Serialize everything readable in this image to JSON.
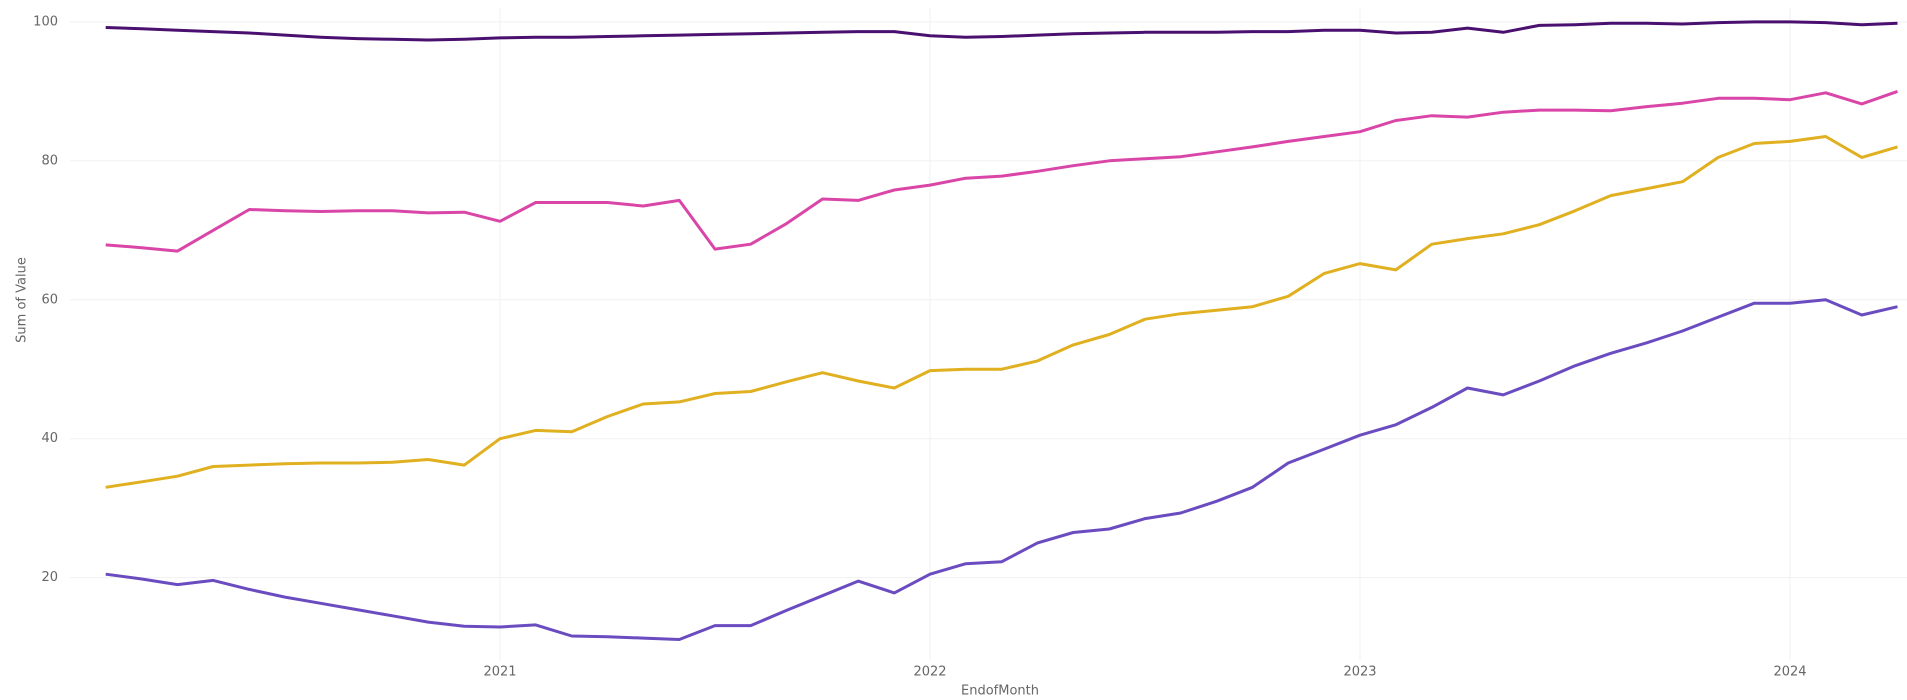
{
  "chart_data": {
    "type": "line",
    "x_label": "EndofMonth",
    "y_label": "Sum of Value",
    "x": [
      2020.083,
      2020.167,
      2020.25,
      2020.333,
      2020.417,
      2020.5,
      2020.583,
      2020.667,
      2020.75,
      2020.833,
      2020.917,
      2021,
      2021.083,
      2021.167,
      2021.25,
      2021.333,
      2021.417,
      2021.5,
      2021.583,
      2021.667,
      2021.75,
      2021.833,
      2021.917,
      2022,
      2022.083,
      2022.167,
      2022.25,
      2022.333,
      2022.417,
      2022.5,
      2022.583,
      2022.667,
      2022.75,
      2022.833,
      2022.917,
      2023,
      2023.083,
      2023.167,
      2023.25,
      2023.333,
      2023.417,
      2023.5,
      2023.583,
      2023.667,
      2023.75,
      2023.833,
      2023.917,
      2024,
      2024.083,
      2024.167,
      2024.25
    ],
    "series": [
      {
        "color": "#4a1070",
        "values": [
          99.2,
          99,
          98.8,
          98.6,
          98.4,
          98.1,
          97.8,
          97.6,
          97.5,
          97.4,
          97.5,
          97.7,
          97.8,
          97.8,
          97.9,
          98,
          98.1,
          98.2,
          98.3,
          98.4,
          98.5,
          98.6,
          98.6,
          98,
          97.8,
          97.9,
          98.1,
          98.3,
          98.4,
          98.5,
          98.5,
          98.5,
          98.6,
          98.6,
          98.8,
          98.8,
          98.4,
          98.5,
          99.1,
          98.5,
          99.5,
          99.6,
          99.8,
          99.8,
          99.7,
          99.9,
          100,
          100,
          99.9,
          99.6,
          99.8
        ]
      },
      {
        "color": "#d946a8",
        "values": [
          67.9,
          67.5,
          67,
          70,
          73,
          72.8,
          72.7,
          72.8,
          72.8,
          72.5,
          72.6,
          71.3,
          74,
          74,
          74,
          73.5,
          74.3,
          67.3,
          68,
          71,
          74.5,
          74.3,
          75.8,
          76.5,
          77.5,
          77.8,
          78.5,
          79.3,
          80,
          80.3,
          80.6,
          81.3,
          82,
          82.8,
          83.5,
          84.2,
          85.8,
          86.5,
          86.3,
          87,
          87.3,
          87.3,
          87.2,
          87.8,
          88.3,
          89,
          89,
          88.8,
          89.8,
          88.2,
          90
        ]
      },
      {
        "color": "#e0b020",
        "values": [
          33,
          33.8,
          34.6,
          36,
          36.2,
          36.4,
          36.5,
          36.5,
          36.6,
          37,
          36.2,
          40,
          41.2,
          41,
          43.2,
          45,
          45.3,
          46.5,
          46.8,
          48.2,
          49.5,
          48.3,
          47.3,
          49.8,
          50,
          50,
          51.2,
          53.5,
          55,
          57.2,
          58,
          58.5,
          59,
          60.5,
          63.8,
          65.2,
          64.3,
          68,
          68.8,
          69.5,
          70.8,
          72.8,
          75,
          76,
          77,
          80.5,
          82.5,
          82.8,
          83.5,
          80.5,
          82
        ]
      },
      {
        "color": "#6a4cc0",
        "values": [
          20.5,
          19.8,
          19,
          19.6,
          18.3,
          17.2,
          16.3,
          15.4,
          14.5,
          13.6,
          13,
          12.9,
          13.2,
          11.6,
          11.5,
          11.3,
          11.1,
          13.1,
          13.1,
          15.3,
          17.4,
          19.5,
          17.8,
          20.5,
          22,
          22.3,
          25,
          26.5,
          27,
          28.5,
          29.3,
          31,
          33,
          36.5,
          38.5,
          40.5,
          42,
          44.5,
          47.3,
          46.3,
          48.3,
          50.5,
          52.3,
          53.8,
          55.5,
          57.5,
          59.5,
          59.5,
          60,
          57.8,
          59
        ]
      }
    ],
    "xlim": [
      2020,
      2024.25
    ],
    "xticks": [
      2021,
      2022,
      2023,
      2024
    ],
    "ylim": [
      8,
      102
    ],
    "yticks": [
      20,
      40,
      60,
      80,
      100
    ],
    "grid": true
  }
}
